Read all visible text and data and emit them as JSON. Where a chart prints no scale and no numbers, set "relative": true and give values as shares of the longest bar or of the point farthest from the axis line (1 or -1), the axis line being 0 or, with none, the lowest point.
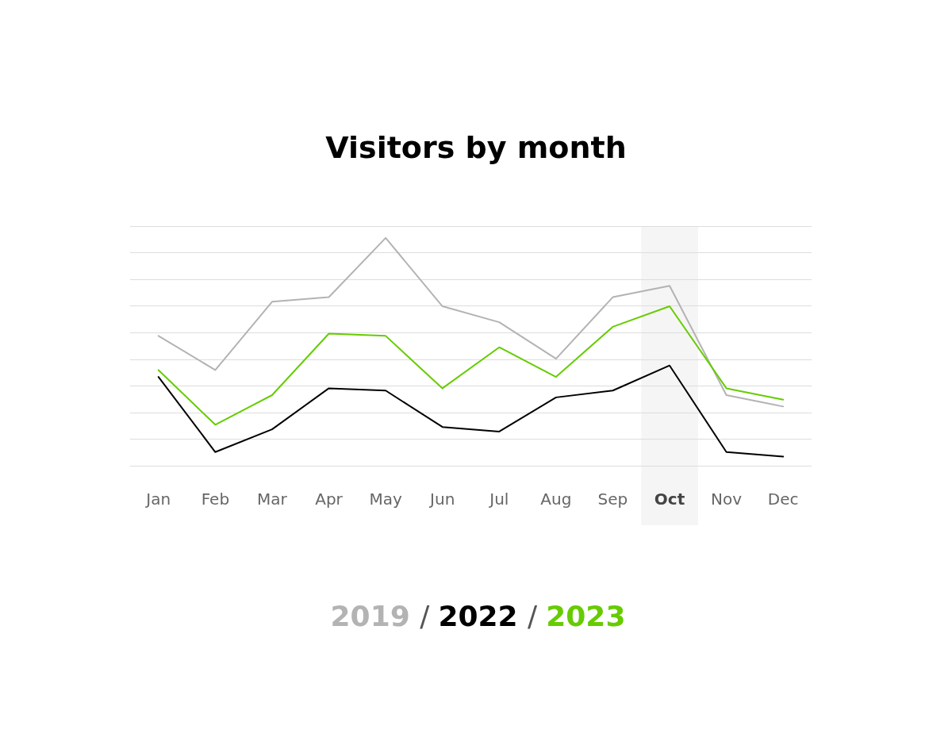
{
  "chart_data": {
    "type": "line",
    "title": "Visitors by month",
    "relative": true,
    "categories": [
      "Jan",
      "Feb",
      "Mar",
      "Apr",
      "May",
      "Jun",
      "Jul",
      "Aug",
      "Sep",
      "Oct",
      "Nov",
      "Dec"
    ],
    "series": [
      {
        "name": "2019",
        "color": "#b3b3b3",
        "values": [
          0.57,
          0.42,
          0.72,
          0.74,
          1,
          0.7,
          0.63,
          0.47,
          0.74,
          0.79,
          0.31,
          0.26
        ]
      },
      {
        "name": "2022",
        "color": "#000000",
        "values": [
          0.39,
          0.06,
          0.16,
          0.34,
          0.33,
          0.17,
          0.15,
          0.3,
          0.33,
          0.44,
          0.06,
          0.04
        ]
      },
      {
        "name": "2023",
        "color": "#66cc00",
        "values": [
          0.42,
          0.18,
          0.31,
          0.58,
          0.57,
          0.34,
          0.52,
          0.39,
          0.61,
          0.7,
          0.34,
          0.29
        ]
      }
    ],
    "bands": [
      {
        "axis": "x",
        "from": "Oct",
        "to": "Oct",
        "color": "#f5f5f5"
      }
    ],
    "annotations": [
      "/",
      "/"
    ],
    "grid": "y",
    "legend": "bottom",
    "marker": "none",
    "line_style": "solid"
  }
}
